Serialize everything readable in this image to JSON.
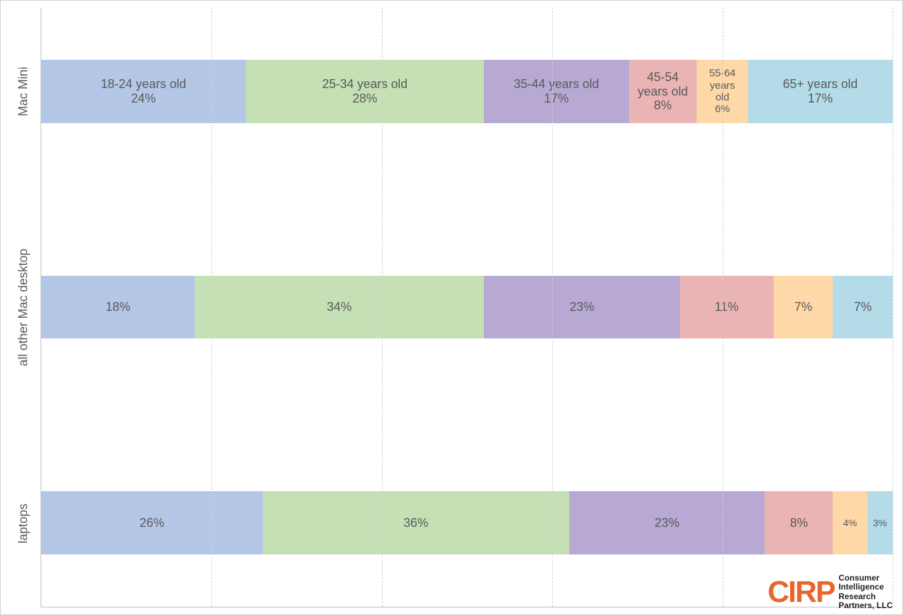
{
  "chart": {
    "type": "stacked_bar_horizontal_100pct",
    "background_color": "#ffffff",
    "border_color": "#d0d0d0",
    "grid_color": "#cfcfcf",
    "grid_dash": "6,6",
    "axis_color": "#bfbfbf",
    "text_color": "#595959",
    "label_fontsize_pt": 14,
    "segment_fontsize_pt": 14,
    "bar_height_pct": 10.5,
    "bar_center_positions_pct": [
      14,
      50,
      86
    ],
    "x_gridlines_pct": [
      20,
      40,
      60,
      80,
      100
    ],
    "segment_colors": {
      "18-24": "#b4c7e7",
      "25-34": "#c5e0b4",
      "35-44": "#b7a9d4",
      "45-54": "#ebb4b4",
      "55-64": "#ffd8a8",
      "65+": "#b3dce8"
    },
    "rows": [
      {
        "key": "mac_mini",
        "label": "Mac Mini",
        "segments": [
          {
            "series": "18-24",
            "label": "18-24 years old\n24%",
            "value": 24
          },
          {
            "series": "25-34",
            "label": "25-34 years old\n28%",
            "value": 28
          },
          {
            "series": "35-44",
            "label": "35-44 years old\n17%",
            "value": 17
          },
          {
            "series": "45-54",
            "label": "45-54\nyears old\n8%",
            "value": 8
          },
          {
            "series": "55-64",
            "label": "55-64\nyears\nold\n6%",
            "value": 6
          },
          {
            "series": "65+",
            "label": "65+ years old\n17%",
            "value": 17
          }
        ]
      },
      {
        "key": "other_desktop",
        "label": "all other Mac desktop",
        "segments": [
          {
            "series": "18-24",
            "label": "18%",
            "value": 18
          },
          {
            "series": "25-34",
            "label": "34%",
            "value": 34
          },
          {
            "series": "35-44",
            "label": "23%",
            "value": 23
          },
          {
            "series": "45-54",
            "label": "11%",
            "value": 11
          },
          {
            "series": "55-64",
            "label": "7%",
            "value": 7
          },
          {
            "series": "65+",
            "label": "7%",
            "value": 7
          }
        ]
      },
      {
        "key": "laptops",
        "label": "laptops",
        "segments": [
          {
            "series": "18-24",
            "label": "26%",
            "value": 26
          },
          {
            "series": "25-34",
            "label": "36%",
            "value": 36
          },
          {
            "series": "35-44",
            "label": "23%",
            "value": 23
          },
          {
            "series": "45-54",
            "label": "8%",
            "value": 8
          },
          {
            "series": "55-64",
            "label": "4%",
            "value": 4
          },
          {
            "series": "65+",
            "label": "3%",
            "value": 3
          }
        ]
      }
    ]
  },
  "logo": {
    "mark": "CIRP",
    "mark_color": "#e8662d",
    "lines": [
      "Consumer",
      "Intelligence",
      "Research",
      "Partners, LLC"
    ],
    "text_color": "#222222"
  }
}
